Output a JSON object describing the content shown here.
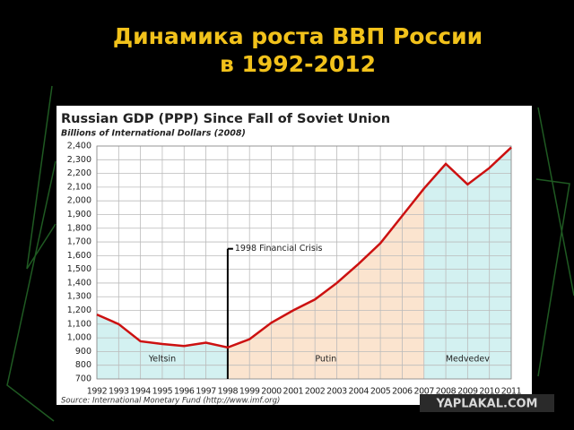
{
  "slide_title": [
    "Динамика роста ВВП России",
    "в 1992-2012"
  ],
  "chart_data": {
    "type": "line",
    "title": "Russian GDP (PPP) Since Fall of Soviet Union",
    "subtitle": "Billions of International Dollars (2008)",
    "source": "Source: International Monetary Fund (http://www.imf.org)",
    "x": [
      1992,
      1993,
      1994,
      1995,
      1996,
      1997,
      1998,
      1999,
      2000,
      2001,
      2002,
      2003,
      2004,
      2005,
      2006,
      2007,
      2008,
      2009,
      2010,
      2011
    ],
    "series": [
      {
        "color": "#cc1111",
        "values": [
          1170,
          1100,
          975,
          955,
          940,
          965,
          930,
          990,
          1110,
          1200,
          1280,
          1400,
          1540,
          1690,
          1890,
          2090,
          2270,
          2120,
          2240,
          2390
        ]
      }
    ],
    "xlim": [
      1992,
      2011
    ],
    "xticks": [
      1992,
      1993,
      1994,
      1995,
      1996,
      1997,
      1998,
      1999,
      2000,
      2001,
      2002,
      2003,
      2004,
      2005,
      2006,
      2007,
      2008,
      2009,
      2010,
      2011
    ],
    "ylim": [
      700,
      2400
    ],
    "yticks": [
      700,
      800,
      900,
      {
        "value": 1000,
        "label": "1,000"
      },
      {
        "value": 1100,
        "label": "1,100"
      },
      {
        "value": 1200,
        "label": "1,200"
      },
      {
        "value": 1300,
        "label": "1,300"
      },
      {
        "value": 1400,
        "label": "1,400"
      },
      {
        "value": 1500,
        "label": "1,500"
      },
      {
        "value": 1600,
        "label": "1,600"
      },
      {
        "value": 1700,
        "label": "1,700"
      },
      {
        "value": 1800,
        "label": "1,800"
      },
      {
        "value": 1900,
        "label": "1,900"
      },
      {
        "value": 2000,
        "label": "2,000"
      },
      {
        "value": 2100,
        "label": "2,100"
      },
      {
        "value": 2200,
        "label": "2,200"
      },
      {
        "value": 2300,
        "label": "2,300"
      },
      {
        "value": 2400,
        "label": "2,400"
      }
    ],
    "grid": true,
    "eras": [
      {
        "name": "Yeltsin",
        "start": 1992,
        "end": 1998,
        "color": "#d3f1f1"
      },
      {
        "name": "Putin",
        "start": 1998,
        "end": 2007,
        "color": "#fbe4cf"
      },
      {
        "name": "Medvedev",
        "start": 2007,
        "end": 2011,
        "color": "#d3f1f1"
      }
    ],
    "annotation": {
      "text": "1998 Financial Crisis",
      "x": 1998,
      "y": 1650
    }
  },
  "watermark": "YAPLAKAL.COM"
}
